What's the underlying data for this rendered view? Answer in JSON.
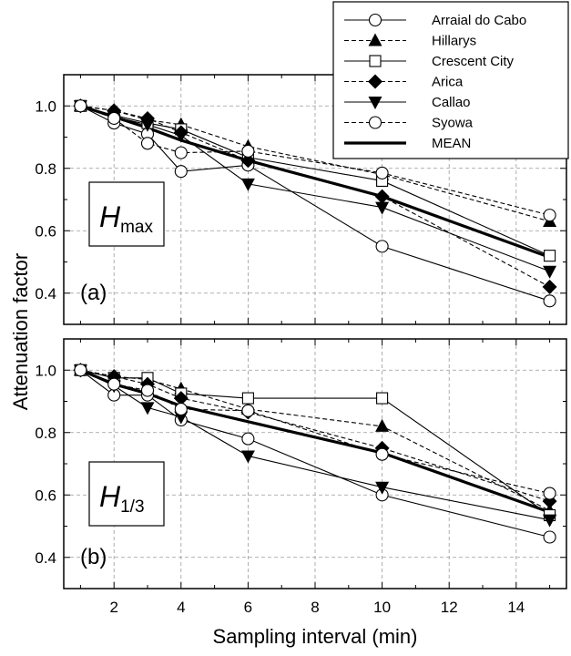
{
  "chart_data": {
    "type": "line",
    "ylabel": "Attenuation factor",
    "xlabel": "Sampling interval  (min)",
    "x": [
      1,
      2,
      3,
      4,
      6,
      10,
      15
    ],
    "xlim": [
      0.5,
      15.5
    ],
    "ylim": [
      0.3,
      1.1
    ],
    "xticks": [
      "2",
      "4",
      "6",
      "8",
      "10",
      "12",
      "14"
    ],
    "yticks": [
      "0.4",
      "0.6",
      "0.8",
      "1.0"
    ],
    "grid": true,
    "legend_position": "top-right",
    "legend": [
      {
        "name": "Arraial do Cabo",
        "marker": "circle-open",
        "dash": "solid"
      },
      {
        "name": "Hillarys",
        "marker": "triangle-up-filled",
        "dash": "dashed"
      },
      {
        "name": "Crescent City",
        "marker": "square-open",
        "dash": "solid"
      },
      {
        "name": "Arica",
        "marker": "diamond-filled",
        "dash": "dashed"
      },
      {
        "name": "Callao",
        "marker": "triangle-down-filled",
        "dash": "solid"
      },
      {
        "name": "Syowa",
        "marker": "circle-open",
        "dash": "dashed"
      },
      {
        "name": "MEAN",
        "marker": "none",
        "dash": "thick"
      }
    ],
    "panels": [
      {
        "tag": "(a)",
        "quantity": {
          "main": "H",
          "sub": "max"
        },
        "series": [
          {
            "name": "Arraial do Cabo",
            "values": [
              1.0,
              0.945,
              0.91,
              0.79,
              0.81,
              0.55,
              0.375
            ]
          },
          {
            "name": "Hillarys",
            "values": [
              1.0,
              0.985,
              0.955,
              0.94,
              0.87,
              0.78,
              0.63
            ]
          },
          {
            "name": "Crescent City",
            "values": [
              1.0,
              0.97,
              0.945,
              0.925,
              0.835,
              0.76,
              0.52
            ]
          },
          {
            "name": "Arica",
            "values": [
              1.0,
              0.985,
              0.96,
              0.915,
              0.825,
              0.71,
              0.42
            ]
          },
          {
            "name": "Callao",
            "values": [
              1.0,
              0.965,
              0.94,
              0.905,
              0.75,
              0.675,
              0.47
            ]
          },
          {
            "name": "Syowa",
            "values": [
              1.0,
              0.96,
              0.88,
              0.85,
              0.855,
              0.785,
              0.65
            ]
          },
          {
            "name": "MEAN",
            "values": [
              1.0,
              0.965,
              0.93,
              0.89,
              0.825,
              0.71,
              0.515
            ]
          }
        ]
      },
      {
        "tag": "(b)",
        "quantity": {
          "main": "H",
          "sub": "1/3"
        },
        "series": [
          {
            "name": "Arraial do Cabo",
            "values": [
              1.0,
              0.92,
              0.92,
              0.84,
              0.78,
              0.6,
              0.465
            ]
          },
          {
            "name": "Hillarys",
            "values": [
              1.0,
              0.98,
              0.97,
              0.94,
              0.875,
              0.82,
              0.55
            ]
          },
          {
            "name": "Crescent City",
            "values": [
              1.0,
              0.975,
              0.975,
              0.925,
              0.91,
              0.91,
              0.535
            ]
          },
          {
            "name": "Arica",
            "values": [
              1.0,
              0.98,
              0.955,
              0.91,
              0.865,
              0.75,
              0.58
            ]
          },
          {
            "name": "Callao",
            "values": [
              1.0,
              0.95,
              0.88,
              0.85,
              0.725,
              0.625,
              0.52
            ]
          },
          {
            "name": "Syowa",
            "values": [
              1.0,
              0.955,
              0.935,
              0.875,
              0.87,
              0.73,
              0.605
            ]
          },
          {
            "name": "MEAN",
            "values": [
              1.0,
              0.955,
              0.925,
              0.885,
              0.835,
              0.735,
              0.545
            ]
          }
        ]
      }
    ]
  }
}
